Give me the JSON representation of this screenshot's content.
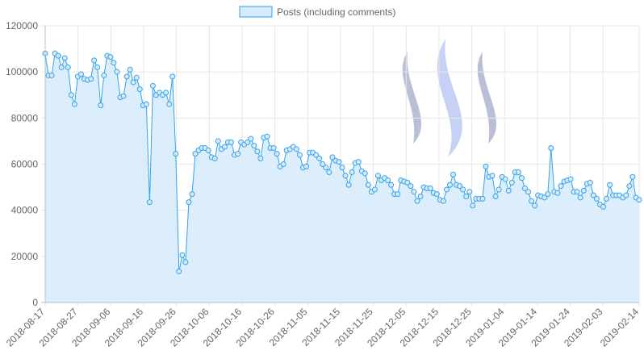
{
  "chart_data": {
    "type": "area",
    "legend": {
      "position": "top-center"
    },
    "grid": true,
    "ylim": [
      0,
      120000
    ],
    "y_ticks": [
      "0",
      "20000",
      "40000",
      "60000",
      "80000",
      "100000",
      "120000"
    ],
    "x_tick_labels": [
      "2018-08-17",
      "2018-08-27",
      "2018-09-06",
      "2018-09-16",
      "2018-09-26",
      "2018-10-06",
      "2018-10-16",
      "2018-10-26",
      "2018-11-05",
      "2018-11-15",
      "2018-11-25",
      "2018-12-05",
      "2018-12-15",
      "2018-12-25",
      "2019-01-04",
      "2019-01-14",
      "2019-01-24",
      "2019-02-03",
      "2019-02-14"
    ],
    "x_range": [
      "2018-08-17",
      "2019-02-14"
    ],
    "series": [
      {
        "name": "Posts (including comments)",
        "line_color": "#36a2eb",
        "fill_color": "#d6ebfa",
        "values": [
          108000,
          98500,
          98500,
          108000,
          107000,
          102000,
          106000,
          102000,
          90000,
          86000,
          98000,
          99000,
          97000,
          96500,
          97000,
          105000,
          102000,
          85500,
          98500,
          107000,
          106500,
          104000,
          100000,
          89000,
          89500,
          98000,
          101000,
          95500,
          97500,
          92500,
          85500,
          86000,
          43500,
          94000,
          90000,
          91000,
          90000,
          91000,
          86000,
          98000,
          64500,
          13500,
          20500,
          17500,
          43500,
          47000,
          64500,
          66000,
          67000,
          67000,
          66000,
          63000,
          62500,
          70000,
          66500,
          67500,
          69500,
          69500,
          64000,
          64500,
          69500,
          68500,
          69500,
          71000,
          68000,
          65500,
          62500,
          71500,
          72000,
          67000,
          67000,
          64500,
          59000,
          60000,
          66000,
          66500,
          67500,
          66500,
          64000,
          58500,
          59000,
          65000,
          65000,
          64000,
          62500,
          60000,
          58500,
          56500,
          63000,
          61500,
          61000,
          58500,
          55000,
          51000,
          56500,
          60500,
          61000,
          57000,
          56000,
          51000,
          48000,
          49000,
          55000,
          53000,
          54000,
          53000,
          51000,
          47000,
          47000,
          53000,
          52500,
          52000,
          50500,
          48000,
          44000,
          46000,
          50000,
          49500,
          49500,
          47500,
          47000,
          44500,
          44000,
          49000,
          51000,
          55500,
          51000,
          50500,
          49000,
          46000,
          48000,
          42000,
          45000,
          45000,
          45000,
          59000,
          54500,
          55000,
          46000,
          49000,
          54500,
          53500,
          48500,
          52000,
          56500,
          56500,
          54000,
          49500,
          48000,
          44000,
          42000,
          46500,
          46000,
          45500,
          47000,
          67000,
          48000,
          47500,
          50500,
          52500,
          53000,
          53500,
          48000,
          48000,
          45500,
          48500,
          51500,
          52000,
          46500,
          45000,
          42500,
          41500,
          45000,
          51000,
          46500,
          46500,
          46500,
          45500,
          46500,
          50500,
          54500,
          45500,
          44500
        ]
      }
    ]
  }
}
